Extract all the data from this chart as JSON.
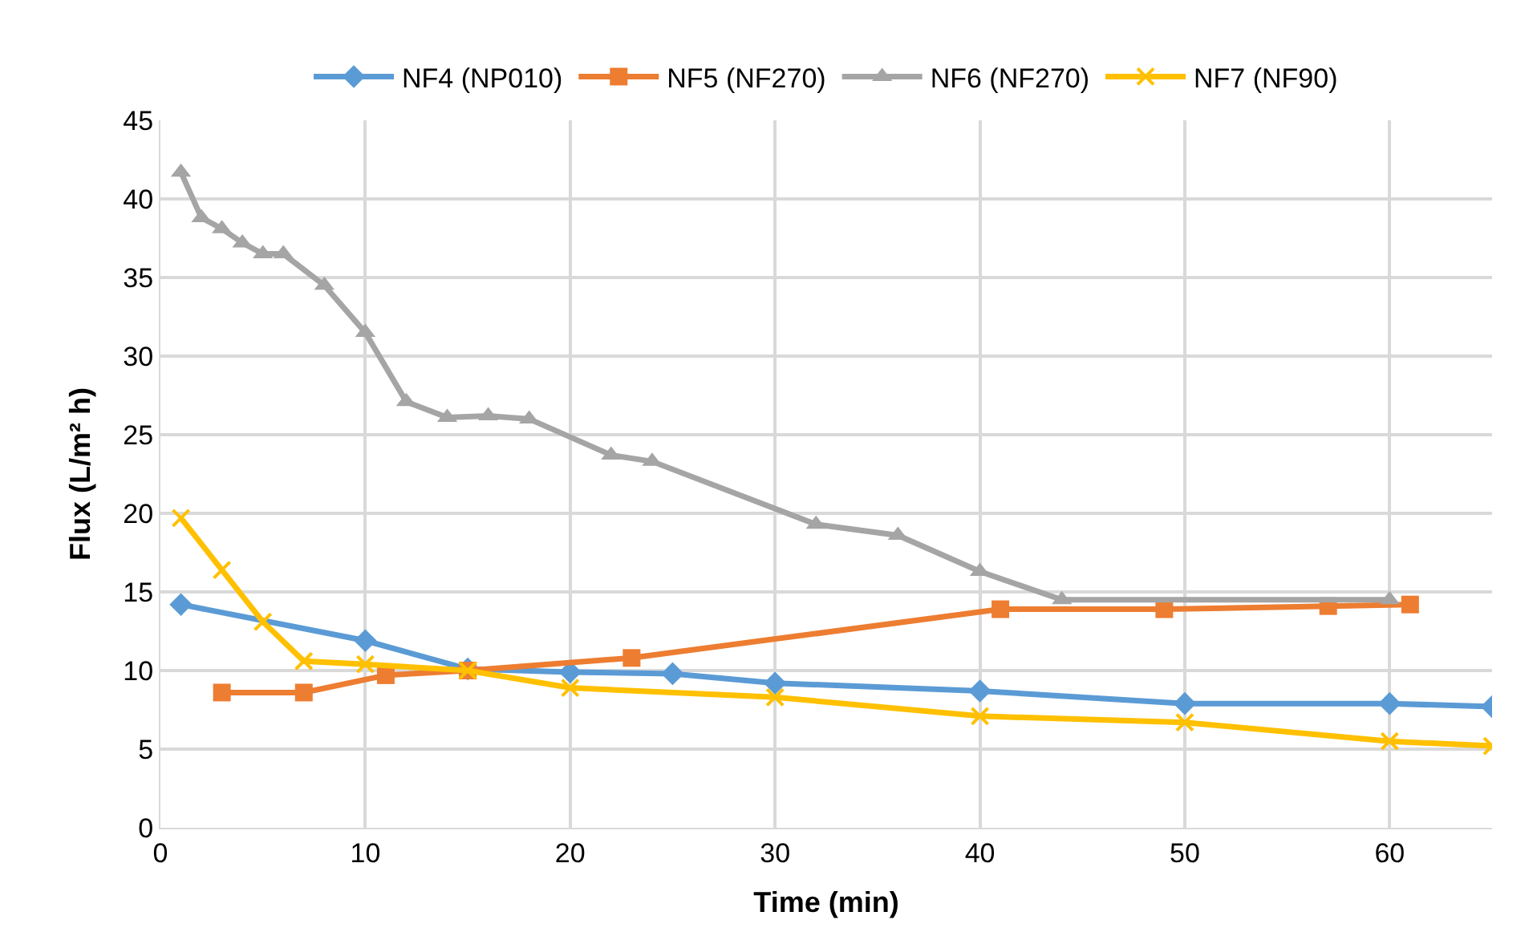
{
  "chart_data": {
    "type": "line",
    "xlabel": "Time (min)",
    "ylabel": "Flux (L/m² h)",
    "xlim": [
      0,
      65
    ],
    "xticks": [
      0,
      10,
      20,
      30,
      40,
      50,
      60
    ],
    "ylim": [
      0,
      45
    ],
    "yticks": [
      0,
      5,
      10,
      15,
      20,
      25,
      30,
      35,
      40,
      45
    ],
    "grid": true,
    "legend": "top",
    "line_style": "solid",
    "series": [
      {
        "name": "NF4 (NP010)",
        "color": "#5b9bd5",
        "marker": "diamond",
        "x": [
          1,
          10,
          15,
          20,
          25,
          30,
          40,
          50,
          60,
          65
        ],
        "values": [
          14.2,
          11.9,
          10.1,
          9.9,
          9.8,
          9.2,
          8.7,
          7.9,
          7.9,
          7.7
        ]
      },
      {
        "name": "NF5 (NF270)",
        "color": "#ed7d31",
        "marker": "square",
        "x": [
          3,
          7,
          11,
          15,
          23,
          41,
          49,
          57,
          61
        ],
        "values": [
          8.6,
          8.6,
          9.7,
          10.0,
          10.8,
          13.9,
          13.9,
          14.1,
          14.2
        ]
      },
      {
        "name": "NF6 (NF270)",
        "color": "#a5a5a5",
        "marker": "triangle",
        "x": [
          1,
          2,
          3,
          4,
          5,
          6,
          8,
          10,
          12,
          14,
          16,
          18,
          22,
          24,
          32,
          36,
          40,
          44,
          60
        ],
        "values": [
          41.7,
          38.8,
          38.1,
          37.2,
          36.5,
          36.5,
          34.5,
          31.5,
          27.1,
          26.1,
          26.2,
          26.0,
          23.7,
          23.3,
          19.3,
          18.6,
          16.3,
          14.5,
          14.5
        ]
      },
      {
        "name": "NF7 (NF90)",
        "color": "#ffc000",
        "marker": "cross",
        "x": [
          1,
          3,
          5,
          7,
          10,
          15,
          20,
          30,
          40,
          50,
          60,
          65
        ],
        "values": [
          19.7,
          16.4,
          13.1,
          10.6,
          10.4,
          10.0,
          8.9,
          8.3,
          7.1,
          6.7,
          5.5,
          5.2
        ]
      }
    ]
  }
}
